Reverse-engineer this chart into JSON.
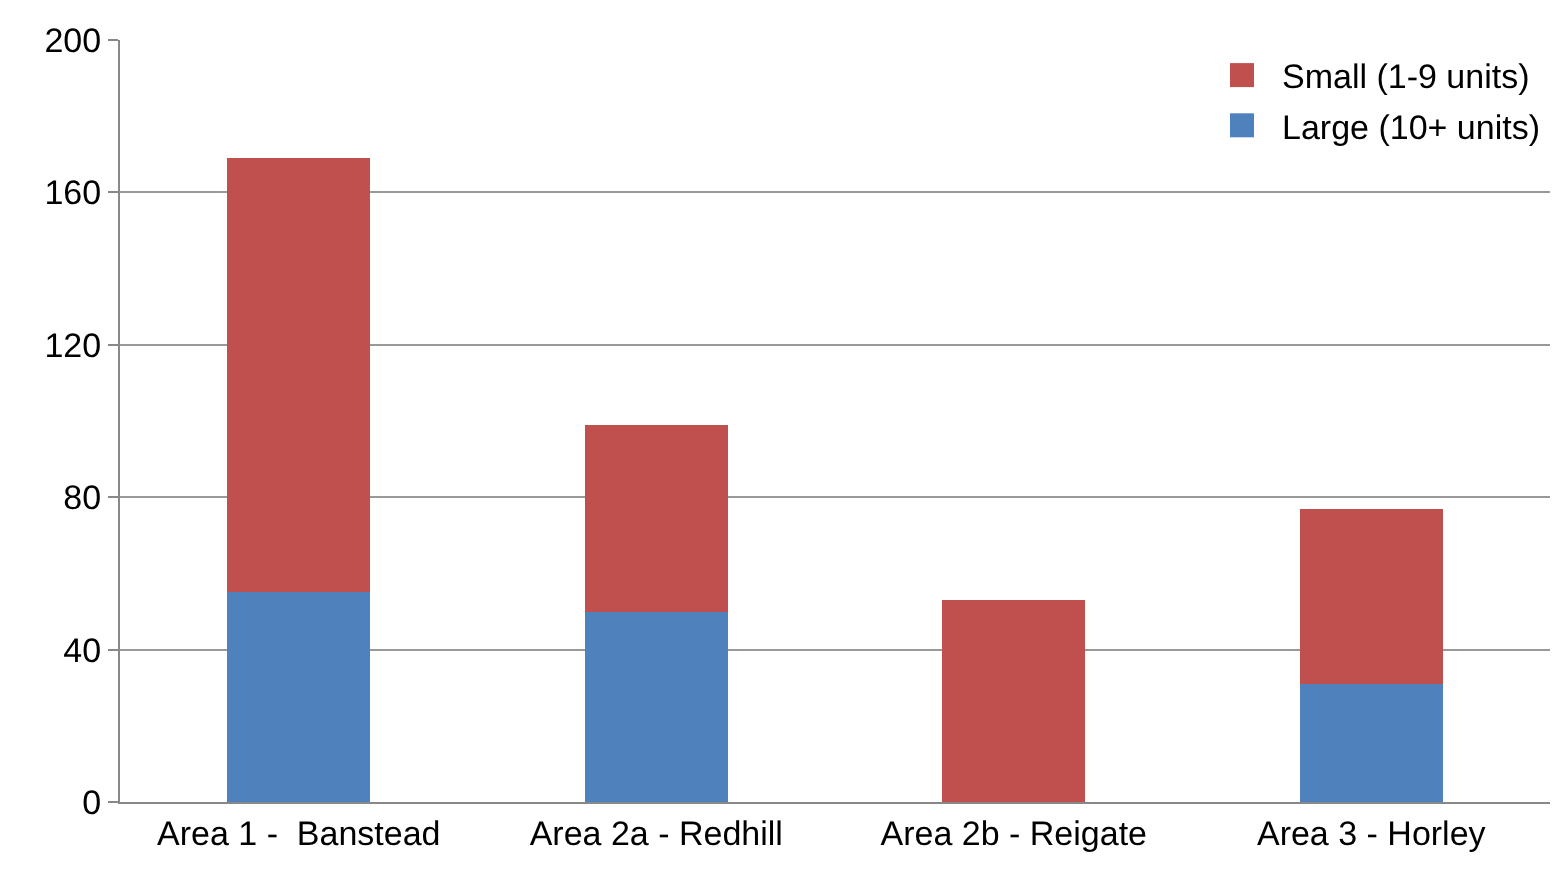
{
  "chart_data": {
    "type": "bar",
    "stacked": true,
    "categories": [
      "Area 1 -  Banstead",
      "Area 2a - Redhill",
      "Area 2b - Reigate",
      "Area 3 - Horley"
    ],
    "series": [
      {
        "name": "Large (10+ units)",
        "color": "#4f81bd",
        "values": [
          55,
          50,
          0,
          31
        ]
      },
      {
        "name": "Small (1-9 units)",
        "color": "#c0504d",
        "values": [
          114,
          49,
          53,
          46
        ]
      }
    ],
    "ylim": [
      0,
      200
    ],
    "yticks": [
      0,
      40,
      80,
      120,
      160,
      200
    ],
    "grid": "y",
    "legend": "top right"
  }
}
